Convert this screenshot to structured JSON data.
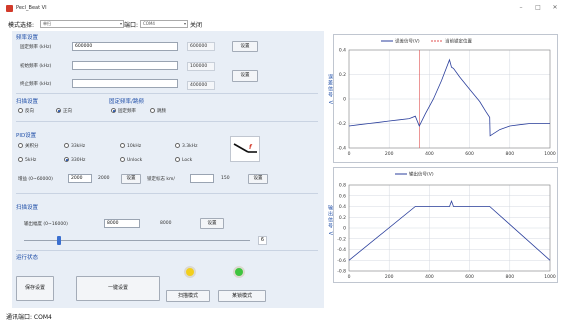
{
  "window": {
    "title": "Pecl_Beat VI",
    "minimize": "–",
    "maximize": "□",
    "close": "✕"
  },
  "menubar": {
    "mode_label": "模式选择:",
    "mode_value": "单扫",
    "port_label": "端口:",
    "port_value": "COM4",
    "close_label": "关闭"
  },
  "freq": {
    "section": "频率设置",
    "center_label": "固定频率 (kHz)",
    "center_value": "600000",
    "center_readout": "600000",
    "start_label": "初始频率 (kHz)",
    "start_value": "",
    "start_readout": "100000",
    "stop_label": "终止频率 (kHz)",
    "stop_value": "",
    "stop_readout": "400000",
    "set1": "设置",
    "set2": "设置"
  },
  "scan_dir": {
    "section": "扫描设置",
    "reverse": "反向",
    "forward": "正向"
  },
  "fixed_mode": {
    "section": "固定频率/跳频",
    "fixed": "固定频率",
    "hop": "跳频"
  },
  "pid": {
    "section": "PID设置",
    "r1": [
      "关积分",
      "33kHz",
      "10kHz",
      "3.3kHz"
    ],
    "r2": [
      "5kHz",
      "330Hz",
      "Unlock",
      "Lock"
    ],
    "gain_label": "增益 (0~60000)",
    "gain_value": "2000",
    "gain_readout": "2000",
    "set": "设置",
    "lock_label": "锁定标志 km/",
    "lock_value": "",
    "lock_readout": "150",
    "set2": "设置"
  },
  "sweep": {
    "section": "扫描设置",
    "out_label": "输出幅度 (0~16000)",
    "out_value": "8000",
    "out_readout": "8000",
    "set": "设置",
    "slider_value": "6"
  },
  "run": {
    "section": "运行状态",
    "save": "保存设置",
    "oneclick": "一键设置",
    "scan_mode": "扫描模式",
    "lock_mode": "某锁模式"
  },
  "status": {
    "text": "通讯端口: COM4"
  },
  "colors": {
    "accent": "#1f4ea8",
    "series1": "#2b3f9c",
    "series2": "#e05050",
    "led_yellow": "#f2cf1c",
    "led_green": "#3fc43f"
  },
  "chart_data": [
    {
      "type": "line",
      "ylabel": "误差信号 V",
      "legend": [
        "误差信号(V)",
        "当前锁定位置"
      ],
      "xlim": [
        0,
        1000
      ],
      "ylim": [
        -0.4,
        0.4
      ],
      "xticks": [
        0,
        200,
        400,
        600,
        800,
        1000
      ],
      "yticks": [
        0.4,
        0.2,
        0,
        -0.2,
        -0.4
      ],
      "marker_x": 350,
      "series": [
        {
          "name": "误差信号(V)",
          "x": [
            0,
            50,
            100,
            150,
            200,
            250,
            300,
            330,
            350,
            380,
            420,
            460,
            500,
            510,
            520,
            550,
            600,
            650,
            680,
            700,
            702,
            750,
            800,
            850,
            900,
            950,
            1000
          ],
          "y": [
            -0.22,
            -0.21,
            -0.2,
            -0.19,
            -0.18,
            -0.17,
            -0.16,
            -0.14,
            -0.22,
            -0.12,
            0.0,
            0.15,
            0.32,
            0.26,
            0.25,
            0.18,
            0.08,
            -0.02,
            -0.1,
            -0.15,
            -0.3,
            -0.25,
            -0.22,
            -0.21,
            -0.2,
            -0.2,
            -0.2
          ]
        }
      ]
    },
    {
      "type": "line",
      "ylabel": "输出信号 V",
      "legend": [
        "输出信号(V)"
      ],
      "xlim": [
        0,
        1000
      ],
      "ylim": [
        -0.8,
        0.8
      ],
      "xticks": [
        0,
        200,
        400,
        600,
        800,
        1000
      ],
      "yticks": [
        0.8,
        0.6,
        0.4,
        0.2,
        0,
        -0.2,
        -0.4,
        -0.6,
        -0.8
      ],
      "series": [
        {
          "name": "输出信号(V)",
          "x": [
            0,
            330,
            500,
            510,
            520,
            600,
            700,
            1000
          ],
          "y": [
            -0.6,
            0.4,
            0.4,
            0.5,
            0.4,
            0.4,
            0.4,
            -0.6
          ]
        }
      ]
    }
  ]
}
